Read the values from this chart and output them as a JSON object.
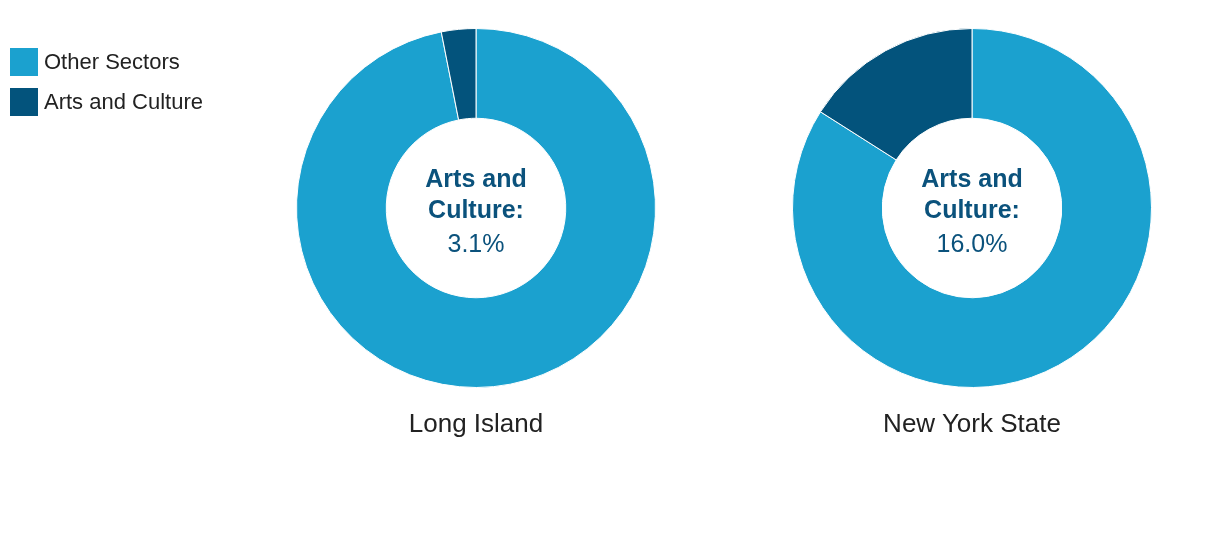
{
  "chart_data": [
    {
      "type": "donut",
      "title": "Long Island",
      "categories": [
        "Other Sectors",
        "Arts and Culture"
      ],
      "values": [
        96.9,
        3.1
      ],
      "colors": [
        "#1ba1cf",
        "#03537c"
      ],
      "annotations": [
        "Arts and Culture:",
        "3.1%"
      ],
      "legend": "top left"
    },
    {
      "type": "donut",
      "title": "New York State",
      "categories": [
        null,
        null
      ],
      "values": [
        84.0,
        16.0
      ],
      "colors": [
        "#1ba1cf",
        "#03537c"
      ],
      "annotations": [
        "Arts and Culture:",
        "16.0%"
      ]
    }
  ]
}
